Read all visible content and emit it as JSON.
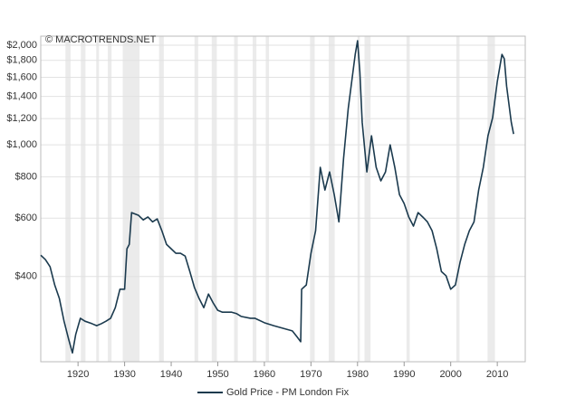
{
  "chart_data": {
    "type": "line",
    "watermark": "© MACROTRENDS.NET",
    "yscale": "log",
    "grid": true,
    "legend": "bottom",
    "xlim": [
      1912,
      2016
    ],
    "ylim": [
      221,
      2130
    ],
    "xticks": [
      1920,
      1930,
      1940,
      1950,
      1960,
      1970,
      1980,
      1990,
      2000,
      2010
    ],
    "yticks": [
      {
        "value": 400,
        "label": "$400"
      },
      {
        "value": 600,
        "label": "$600"
      },
      {
        "value": 800,
        "label": "$800"
      },
      {
        "value": 1000,
        "label": "$1,000"
      },
      {
        "value": 1200,
        "label": "$1,200"
      },
      {
        "value": 1400,
        "label": "$1,400"
      },
      {
        "value": 1600,
        "label": "$1,600"
      },
      {
        "value": 1800,
        "label": "$1,800"
      },
      {
        "value": 2000,
        "label": "$2,000"
      }
    ],
    "shade_color": "#ebebeb",
    "shaded_periods": [
      [
        1917.3,
        1918.4
      ],
      [
        1920.6,
        1921.6
      ],
      [
        1923.9,
        1924.5
      ],
      [
        1926.4,
        1927.2
      ],
      [
        1929.6,
        1933.2
      ],
      [
        1937.4,
        1938.4
      ],
      [
        1945.0,
        1945.8
      ],
      [
        1948.7,
        1949.8
      ],
      [
        1953.5,
        1954.3
      ],
      [
        1957.5,
        1958.3
      ],
      [
        1960.3,
        1961.0
      ],
      [
        1969.8,
        1970.8
      ],
      [
        1973.8,
        1975.1
      ],
      [
        1980.0,
        1980.5
      ],
      [
        1981.5,
        1982.8
      ],
      [
        1990.5,
        1991.2
      ],
      [
        2001.2,
        2001.9
      ],
      [
        2007.9,
        2009.5
      ]
    ],
    "series": [
      {
        "name": "Gold Price - PM London Fix",
        "color": "#1b3a4e",
        "x": [
          1912,
          1913,
          1914,
          1915,
          1916,
          1917,
          1918,
          1918.8,
          1919.5,
          1920.5,
          1921.5,
          1923,
          1924,
          1925,
          1926,
          1927,
          1928,
          1929,
          1930,
          1930.5,
          1931,
          1931.5,
          1933,
          1934,
          1935,
          1936,
          1937,
          1938,
          1939,
          1940,
          1941,
          1942,
          1943,
          1944,
          1945,
          1946,
          1947,
          1948,
          1949,
          1950,
          1951,
          1952,
          1953,
          1954,
          1955,
          1957,
          1958,
          1960,
          1962,
          1964,
          1966,
          1967,
          1967.8,
          1968,
          1969,
          1970,
          1971,
          1972,
          1973,
          1974,
          1975,
          1976,
          1977,
          1978,
          1979.5,
          1980,
          1980.5,
          1981,
          1982,
          1983,
          1984,
          1985,
          1986,
          1987,
          1988,
          1989,
          1990,
          1991,
          1992,
          1993,
          1994,
          1995,
          1996,
          1997,
          1998,
          1999,
          2000,
          2001,
          2002,
          2003,
          2004,
          2005,
          2006,
          2007,
          2008,
          2009,
          2010,
          2011,
          2011.5,
          2012,
          2012.5,
          2013,
          2013.5
        ],
        "values": [
          464,
          450,
          428,
          377,
          343,
          293,
          258,
          235,
          267,
          299,
          293,
          288,
          284,
          288,
          293,
          299,
          322,
          366,
          366,
          485,
          500,
          624,
          612,
          593,
          605,
          585,
          597,
          550,
          500,
          485,
          470,
          470,
          461,
          414,
          370,
          343,
          322,
          354,
          333,
          316,
          312,
          312,
          312,
          309,
          303,
          299,
          299,
          290,
          284,
          279,
          274,
          263,
          254,
          366,
          377,
          470,
          550,
          855,
          730,
          828,
          707,
          585,
          910,
          1286,
          1876,
          2063,
          1657,
          1170,
          828,
          1065,
          855,
          778,
          828,
          1000,
          855,
          707,
          665,
          605,
          568,
          624,
          605,
          585,
          550,
          485,
          414,
          402,
          366,
          377,
          441,
          500,
          550,
          585,
          730,
          855,
          1065,
          1208,
          1553,
          1876,
          1820,
          1505,
          1327,
          1170,
          1078
        ]
      }
    ]
  }
}
